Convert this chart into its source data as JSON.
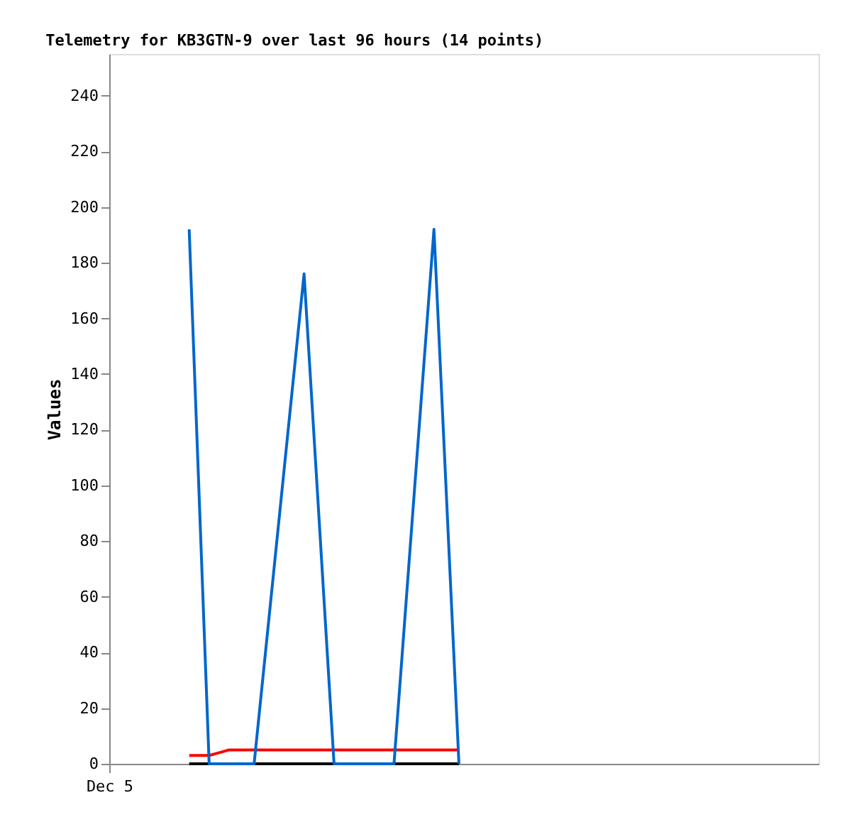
{
  "chart_data": {
    "type": "line",
    "title": "Telemetry for KB3GTN-9 over last 96 hours (14 points)",
    "ylabel": "Values",
    "categories": [
      "Dec 5",
      null,
      null,
      null,
      null,
      null,
      null,
      null,
      null,
      null,
      null,
      null,
      null,
      null,
      null,
      null,
      null,
      null,
      null,
      null,
      null,
      null,
      null,
      null,
      null,
      null,
      null,
      null,
      null,
      null,
      null,
      null,
      null,
      null,
      null,
      null,
      null,
      null,
      null,
      null,
      null,
      null,
      null,
      null,
      null,
      null,
      null,
      null,
      null,
      null,
      null,
      null,
      null,
      null,
      null,
      null,
      null,
      null,
      null,
      null,
      null,
      null,
      null,
      null,
      null,
      null,
      null,
      null,
      null,
      null,
      null,
      null,
      null,
      null,
      null,
      null,
      null,
      null,
      null,
      null,
      null,
      null,
      null,
      null,
      null,
      null,
      null,
      null,
      null,
      null,
      null,
      null,
      null,
      null,
      null,
      null,
      null,
      null,
      null,
      null,
      null,
      null,
      null,
      null,
      null,
      null,
      null,
      null,
      null,
      null,
      null,
      null,
      null,
      null,
      null,
      null,
      null,
      null,
      null,
      null,
      null,
      null,
      null,
      null,
      null,
      null,
      null,
      null,
      null,
      null,
      null,
      null,
      null,
      null,
      null,
      null,
      null,
      null,
      null,
      null,
      null,
      null,
      null
    ],
    "series": [
      {
        "color": "#000000",
        "values": [
          null,
          null,
          null,
          null,
          null,
          null,
          null,
          null,
          null,
          null,
          null,
          null,
          null,
          null,
          null,
          null,
          0,
          null,
          null,
          null,
          null,
          null,
          null,
          null,
          null,
          null,
          null,
          null,
          null,
          null,
          null,
          null,
          null,
          null,
          null,
          null,
          null,
          null,
          null,
          null,
          null,
          null,
          null,
          null,
          null,
          null,
          null,
          null,
          null,
          null,
          null,
          null,
          null,
          null,
          null,
          null,
          null,
          null,
          null,
          null,
          null,
          null,
          null,
          null,
          null,
          null,
          null,
          null,
          null,
          null,
          0,
          null,
          null,
          null,
          null,
          null,
          null,
          null,
          null,
          null,
          null,
          null,
          null,
          null,
          null,
          null,
          null,
          null,
          null,
          null,
          null,
          null,
          null,
          null,
          null,
          null,
          null,
          null,
          null,
          null,
          null,
          null,
          null,
          null,
          null,
          null,
          null,
          null,
          null,
          null,
          null,
          null,
          null,
          null,
          null,
          null,
          null,
          null,
          null,
          null,
          null,
          null,
          null,
          null,
          null,
          null,
          null,
          null,
          null,
          null,
          null,
          null,
          null,
          null,
          null,
          null,
          null,
          null,
          null,
          null,
          null,
          null,
          null
        ]
      },
      {
        "color": "#ff0000",
        "values": [
          null,
          null,
          null,
          null,
          null,
          null,
          null,
          null,
          null,
          null,
          null,
          null,
          null,
          null,
          null,
          null,
          3,
          null,
          null,
          null,
          3,
          null,
          4,
          null,
          5,
          null,
          null,
          null,
          null,
          null,
          null,
          null,
          null,
          null,
          null,
          null,
          null,
          null,
          null,
          null,
          null,
          null,
          null,
          null,
          null,
          null,
          null,
          null,
          null,
          null,
          null,
          null,
          null,
          null,
          null,
          null,
          null,
          null,
          null,
          null,
          null,
          null,
          null,
          null,
          null,
          null,
          null,
          null,
          null,
          null,
          5,
          null,
          null,
          null,
          null,
          null,
          null,
          null,
          null,
          null,
          null,
          null,
          null,
          null,
          null,
          null,
          null,
          null,
          null,
          null,
          null,
          null,
          null,
          null,
          null,
          null,
          null,
          null,
          null,
          null,
          null,
          null,
          null,
          null,
          null,
          null,
          null,
          null,
          null,
          null,
          null,
          null,
          null,
          null,
          null,
          null,
          null,
          null,
          null,
          null,
          null,
          null,
          null,
          null,
          null,
          null,
          null,
          null,
          null,
          null,
          null,
          null,
          null,
          null,
          null,
          null,
          null,
          null,
          null,
          null,
          null,
          null,
          null
        ]
      },
      {
        "color": "#0066cc",
        "values": [
          null,
          null,
          null,
          null,
          null,
          null,
          null,
          null,
          null,
          null,
          null,
          null,
          null,
          null,
          null,
          null,
          192,
          null,
          null,
          null,
          0,
          null,
          null,
          null,
          null,
          null,
          null,
          null,
          null,
          0,
          null,
          null,
          null,
          null,
          null,
          null,
          null,
          null,
          null,
          176,
          null,
          null,
          null,
          null,
          null,
          0,
          null,
          null,
          null,
          null,
          null,
          null,
          null,
          null,
          null,
          null,
          null,
          0,
          null,
          null,
          null,
          null,
          null,
          null,
          null,
          192,
          null,
          null,
          null,
          null,
          0,
          null,
          null,
          null,
          null,
          null,
          null,
          null,
          null,
          null,
          null,
          null,
          null,
          null,
          null,
          null,
          null,
          null,
          null,
          null,
          null,
          null,
          null,
          null,
          null,
          null,
          null,
          null,
          null,
          null,
          null,
          null,
          null,
          null,
          null,
          null,
          null,
          null,
          null,
          null,
          null,
          null,
          null,
          null,
          null,
          null,
          null,
          null,
          null,
          null,
          null,
          null,
          null,
          null,
          null,
          null,
          null,
          null,
          null,
          null,
          null,
          null,
          null,
          null,
          null,
          null,
          null,
          null,
          null,
          null,
          null,
          null,
          null
        ]
      }
    ],
    "ylim": [
      0,
      255
    ],
    "yticks": [
      0,
      20,
      40,
      60,
      80,
      100,
      120,
      140,
      160,
      180,
      200,
      220,
      240
    ],
    "grid": false,
    "legend": false
  }
}
